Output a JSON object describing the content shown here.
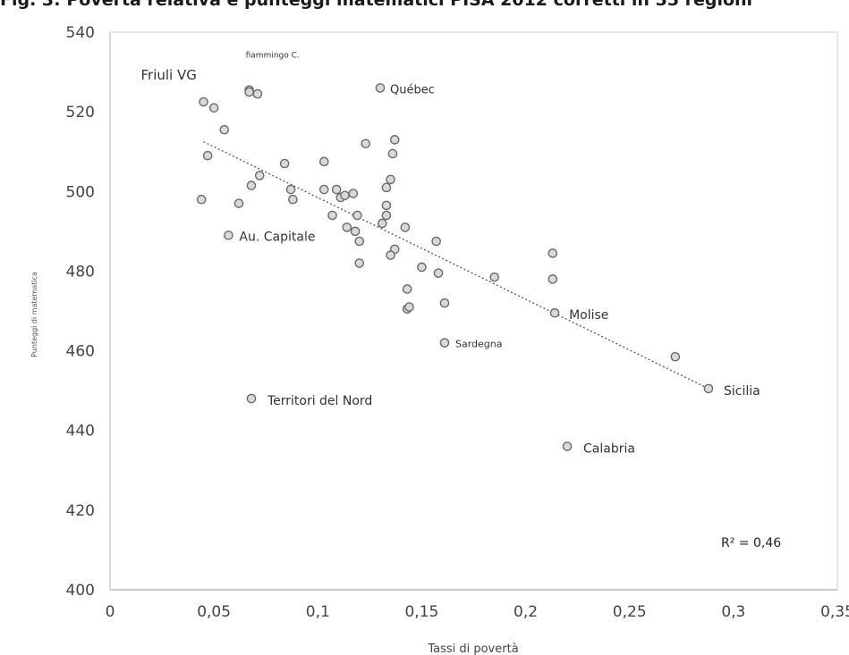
{
  "figure_title": "Fig. 3: Povertà relativa e punteggi matematici PISA 2012 corretti in 55 regioni",
  "chart_data": {
    "type": "scatter",
    "title": "Fig. 3: Povertà relativa e punteggi matematici PISA 2012 corretti in 55 regioni",
    "xlabel": "Tassi di povertà",
    "ylabel": "Punteggi di matematica",
    "xlim": [
      0,
      0.35
    ],
    "ylim": [
      400,
      540
    ],
    "x_ticks": [
      0,
      0.05,
      0.1,
      0.15,
      0.2,
      0.25,
      0.3,
      0.35
    ],
    "x_tick_labels": [
      "0",
      "0,05",
      "0,1",
      "0,15",
      "0,2",
      "0,25",
      "0,3",
      "0,35"
    ],
    "y_ticks": [
      400,
      420,
      440,
      460,
      480,
      500,
      520,
      540
    ],
    "y_tick_labels": [
      "400",
      "420",
      "440",
      "460",
      "480",
      "500",
      "520",
      "540"
    ],
    "grid": false,
    "marker_color": "#d9d9d9",
    "marker_edge": "#6b6b6b",
    "trendline": {
      "style": "dotted",
      "color": "#555555",
      "from": [
        0.045,
        512.5
      ],
      "to": [
        0.288,
        450.5
      ]
    },
    "r_squared": "R² = 0,46",
    "points": [
      [
        0.045,
        522.5
      ],
      [
        0.05,
        521.0
      ],
      [
        0.047,
        509.0
      ],
      [
        0.055,
        515.5
      ],
      [
        0.044,
        498.0
      ],
      [
        0.057,
        489.0
      ],
      [
        0.062,
        497.0
      ],
      [
        0.067,
        525.5
      ],
      [
        0.067,
        525.0
      ],
      [
        0.071,
        524.5
      ],
      [
        0.068,
        501.5
      ],
      [
        0.072,
        504.0
      ],
      [
        0.084,
        507.0
      ],
      [
        0.087,
        500.5
      ],
      [
        0.088,
        498.0
      ],
      [
        0.103,
        507.5
      ],
      [
        0.103,
        500.5
      ],
      [
        0.109,
        500.5
      ],
      [
        0.111,
        498.5
      ],
      [
        0.113,
        499.0
      ],
      [
        0.117,
        499.5
      ],
      [
        0.107,
        494.0
      ],
      [
        0.114,
        491.0
      ],
      [
        0.118,
        490.0
      ],
      [
        0.119,
        494.0
      ],
      [
        0.12,
        487.5
      ],
      [
        0.12,
        482.0
      ],
      [
        0.123,
        512.0
      ],
      [
        0.13,
        526.0
      ],
      [
        0.137,
        513.0
      ],
      [
        0.136,
        509.5
      ],
      [
        0.135,
        503.0
      ],
      [
        0.133,
        501.0
      ],
      [
        0.133,
        496.5
      ],
      [
        0.133,
        494.0
      ],
      [
        0.131,
        492.0
      ],
      [
        0.137,
        485.5
      ],
      [
        0.135,
        484.0
      ],
      [
        0.142,
        491.0
      ],
      [
        0.143,
        475.5
      ],
      [
        0.143,
        470.5
      ],
      [
        0.144,
        471.0
      ],
      [
        0.15,
        481.0
      ],
      [
        0.157,
        487.5
      ],
      [
        0.158,
        479.5
      ],
      [
        0.161,
        472.0
      ],
      [
        0.161,
        462.0
      ],
      [
        0.185,
        478.5
      ],
      [
        0.213,
        484.5
      ],
      [
        0.213,
        478.0
      ],
      [
        0.214,
        469.5
      ],
      [
        0.22,
        436.0
      ],
      [
        0.272,
        458.5
      ],
      [
        0.288,
        450.5
      ],
      [
        0.068,
        448.0
      ]
    ],
    "annotations": [
      {
        "text": "Friuli VG",
        "x": 0.045,
        "y": 522.5,
        "size": 15
      },
      {
        "text": "fiammingo C.",
        "x": 0.067,
        "y": 525.5,
        "size": 9
      },
      {
        "text": "Québec",
        "x": 0.13,
        "y": 526.0,
        "size": 13
      },
      {
        "text": "Au. Capitale",
        "x": 0.057,
        "y": 489.0,
        "size": 14
      },
      {
        "text": "Sardegna",
        "x": 0.161,
        "y": 462.0,
        "size": 11
      },
      {
        "text": "Molise",
        "x": 0.214,
        "y": 469.5,
        "size": 14
      },
      {
        "text": "Territori del Nord",
        "x": 0.068,
        "y": 448.0,
        "size": 14
      },
      {
        "text": "Calabria",
        "x": 0.22,
        "y": 436.0,
        "size": 14
      },
      {
        "text": "Sicilia",
        "x": 0.288,
        "y": 450.5,
        "size": 14
      }
    ]
  }
}
